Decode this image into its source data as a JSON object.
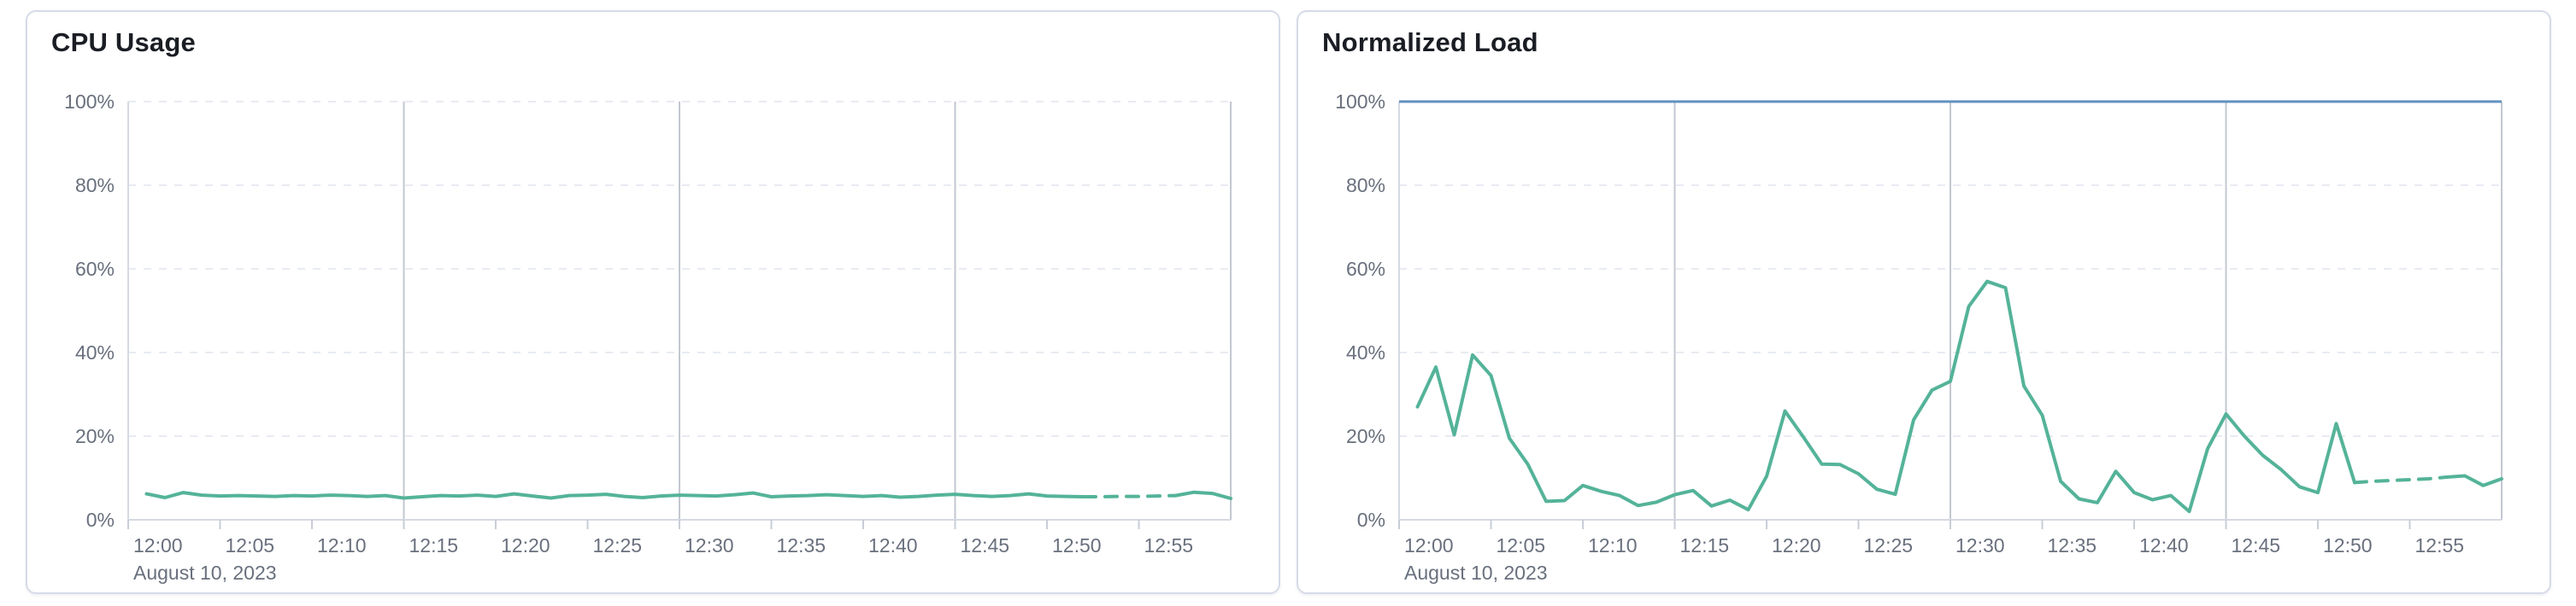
{
  "page": {
    "background": "#ffffff"
  },
  "colors": {
    "series_green": "#54b399",
    "threshold_blue": "#6092c0",
    "grid_horizontal": "#e8ebf2",
    "grid_vertical_major": "#c3c7d0",
    "axis_line": "#d6dae2",
    "tick_mark": "#c9cdd6",
    "axis_label": "#69707d",
    "panel_title": "#1b1d24",
    "panel_border": "#d6dbe8"
  },
  "panels": [
    {
      "title": "CPU Usage"
    },
    {
      "title": "Normalized Load"
    }
  ],
  "chart_data": [
    {
      "type": "line",
      "title": "CPU Usage",
      "xlabel": "",
      "ylabel": "",
      "y_format": "percent",
      "ylim": [
        0,
        100
      ],
      "x_start": "12:00",
      "x_end": "13:00",
      "x_step_minutes": 1,
      "x_tick_labels": [
        "12:00",
        "12:05",
        "12:10",
        "12:15",
        "12:20",
        "12:25",
        "12:30",
        "12:35",
        "12:40",
        "12:45",
        "12:50",
        "12:55"
      ],
      "x_secondary_label": "August 10, 2023",
      "y_tick_labels": [
        "100%",
        "80%",
        "60%",
        "40%",
        "20%",
        "0%"
      ],
      "grid": {
        "horizontal": "dashed",
        "vertical_major_minutes": [
          15,
          30,
          45,
          60
        ]
      },
      "legend": "none",
      "threshold_line": null,
      "series": [
        {
          "name": "CPU Usage",
          "color": "#54b399",
          "first_point_minutes_after_start": 1,
          "values": [
            6.2,
            5.3,
            6.5,
            5.9,
            5.7,
            5.8,
            5.7,
            5.6,
            5.8,
            5.7,
            5.9,
            5.8,
            5.6,
            5.8,
            5.2,
            5.5,
            5.8,
            5.7,
            5.9,
            5.6,
            6.2,
            5.7,
            5.2,
            5.8,
            5.9,
            6.1,
            5.6,
            5.3,
            5.7,
            5.9,
            5.8,
            5.7,
            6.0,
            6.4,
            5.5,
            5.7,
            5.8,
            6.0,
            5.8,
            5.6,
            5.8,
            5.4,
            5.6,
            5.9,
            6.1,
            5.8,
            5.6,
            5.8,
            6.2,
            5.7,
            5.6,
            5.5,
            5.5,
            5.6,
            5.6,
            5.7,
            5.8,
            6.6,
            6.3,
            5.1
          ],
          "interpolated_gap": {
            "from_minute": 52,
            "to_minute": 57,
            "style": "dashed"
          }
        }
      ]
    },
    {
      "type": "line",
      "title": "Normalized Load",
      "xlabel": "",
      "ylabel": "",
      "y_format": "percent",
      "ylim": [
        0,
        100
      ],
      "x_start": "12:00",
      "x_end": "13:00",
      "x_step_minutes": 1,
      "x_tick_labels": [
        "12:00",
        "12:05",
        "12:10",
        "12:15",
        "12:20",
        "12:25",
        "12:30",
        "12:35",
        "12:40",
        "12:45",
        "12:50",
        "12:55"
      ],
      "x_secondary_label": "August 10, 2023",
      "y_tick_labels": [
        "100%",
        "80%",
        "60%",
        "40%",
        "20%",
        "0%"
      ],
      "grid": {
        "horizontal": "dashed",
        "vertical_major_minutes": [
          15,
          30,
          45,
          60
        ]
      },
      "legend": "none",
      "threshold_line": {
        "value": 100,
        "color": "#6092c0"
      },
      "series": [
        {
          "name": "Normalized Load",
          "color": "#54b399",
          "first_point_minutes_after_start": 1,
          "values": [
            27.0,
            36.5,
            20.3,
            39.4,
            34.5,
            19.5,
            13.3,
            4.4,
            4.6,
            8.2,
            6.8,
            5.8,
            3.4,
            4.2,
            6.0,
            7.0,
            3.3,
            4.7,
            2.4,
            10.4,
            26.0,
            19.8,
            13.3,
            13.2,
            11.0,
            7.3,
            6.1,
            23.9,
            31.0,
            33.1,
            51.0,
            57.0,
            55.5,
            32.0,
            25.0,
            9.2,
            5.0,
            4.1,
            11.6,
            6.5,
            4.8,
            5.8,
            2.0,
            17.0,
            25.3,
            20.0,
            15.4,
            12.0,
            7.9,
            6.5,
            23.0,
            8.9,
            9.2,
            9.4,
            9.6,
            9.8,
            10.2,
            10.5,
            8.2,
            9.8
          ],
          "interpolated_gap": {
            "from_minute": 52,
            "to_minute": 57,
            "style": "dashed"
          }
        }
      ]
    }
  ]
}
